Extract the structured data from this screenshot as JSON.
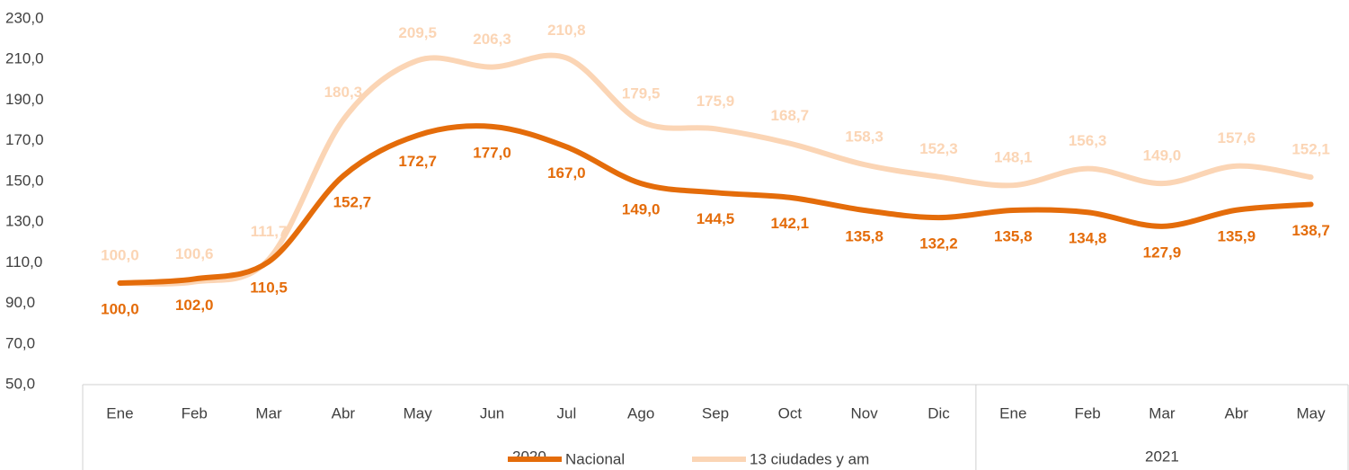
{
  "chart_data": {
    "type": "line",
    "category_groups": [
      {
        "name": "2020",
        "categories": [
          "Ene",
          "Feb",
          "Mar",
          "Abr",
          "May",
          "Jun",
          "Jul",
          "Ago",
          "Sep",
          "Oct",
          "Nov",
          "Dic"
        ]
      },
      {
        "name": "2021",
        "categories": [
          "Ene",
          "Feb",
          "Mar",
          "Abr",
          "May"
        ]
      }
    ],
    "series": [
      {
        "name": "Nacional",
        "color": "#e46c0a",
        "values": [
          100.0,
          102.0,
          110.5,
          152.7,
          172.7,
          177.0,
          167.0,
          149.0,
          144.5,
          142.1,
          135.8,
          132.2,
          135.8,
          134.8,
          127.9,
          135.9,
          138.7
        ],
        "value_labels": [
          "100,0",
          "102,0",
          "110,5",
          "152,7",
          "172,7",
          "177,0",
          "167,0",
          "149,0",
          "144,5",
          "142,1",
          "135,8",
          "132,2",
          "135,8",
          "134,8",
          "127,9",
          "135,9",
          "138,7"
        ]
      },
      {
        "name": "13 ciudades y am",
        "color": "#fbd5b5",
        "values": [
          100.0,
          100.6,
          111.7,
          180.3,
          209.5,
          206.3,
          210.8,
          179.5,
          175.9,
          168.7,
          158.3,
          152.3,
          148.1,
          156.3,
          149.0,
          157.6,
          152.1
        ],
        "value_labels": [
          "100,0",
          "100,6",
          "111,7",
          "180,3",
          "209,5",
          "206,3",
          "210,8",
          "179,5",
          "175,9",
          "168,7",
          "158,3",
          "152,3",
          "148,1",
          "156,3",
          "149,0",
          "157,6",
          "152,1"
        ]
      }
    ],
    "ylim": [
      50,
      230
    ],
    "yticks": [
      {
        "value": 50,
        "label": "50,0"
      },
      {
        "value": 70,
        "label": "70,0"
      },
      {
        "value": 90,
        "label": "90,0"
      },
      {
        "value": 110,
        "label": "110,0"
      },
      {
        "value": 130,
        "label": "130,0"
      },
      {
        "value": 150,
        "label": "150,0"
      },
      {
        "value": 170,
        "label": "170,0"
      },
      {
        "value": 190,
        "label": "190,0"
      },
      {
        "value": 210,
        "label": "210,0"
      },
      {
        "value": 230,
        "label": "230,0"
      }
    ],
    "grid": false,
    "legend": "bottom"
  }
}
